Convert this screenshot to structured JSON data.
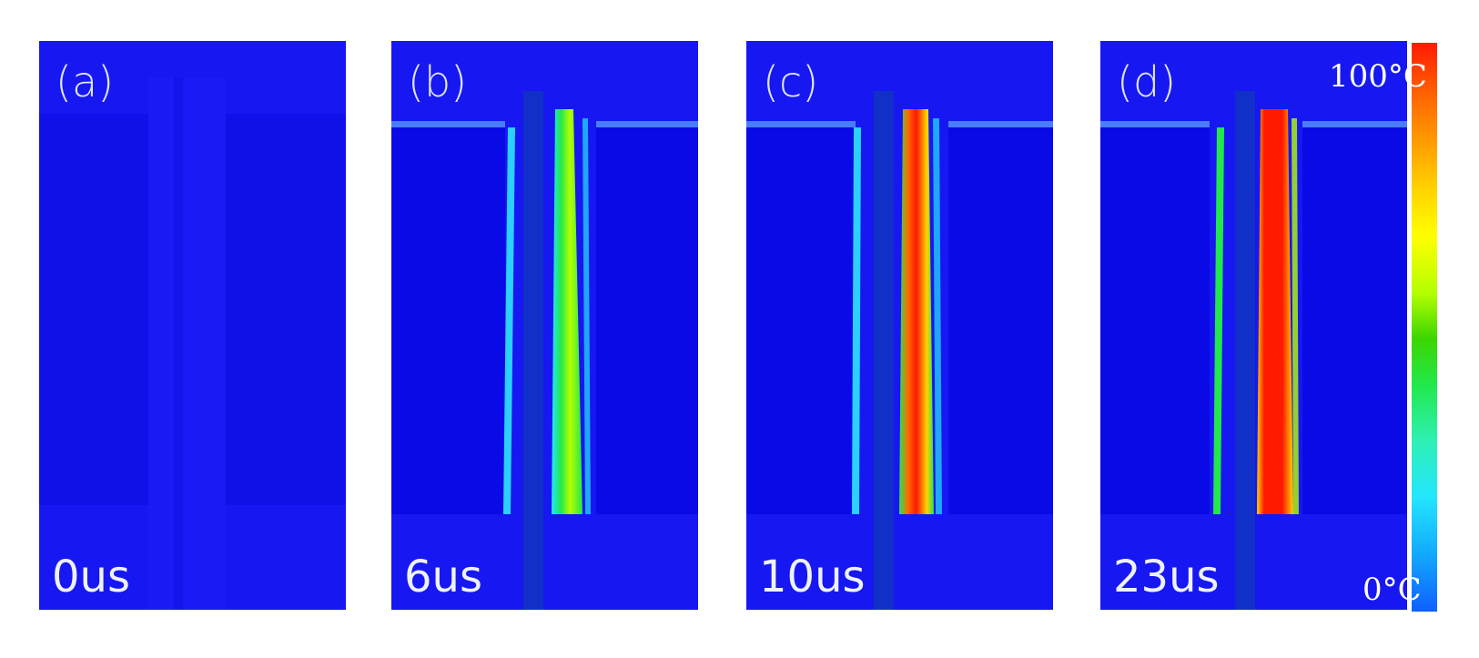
{
  "panels": [
    {
      "label": "(a)",
      "time": "0us",
      "heat": 0
    },
    {
      "label": "(b)",
      "time": "6us",
      "heat": 0.55
    },
    {
      "label": "(c)",
      "time": "10us",
      "heat": 0.85
    },
    {
      "label": "(d)",
      "time": "23us",
      "heat": 1.0
    }
  ],
  "colorbar": {
    "max_label": "100°C",
    "min_label": "0°C"
  },
  "colors": {
    "background_blue": "#1414f0",
    "region_blue": "#0a0ae6",
    "hot_red": "#ff1a00",
    "green": "#22e84a",
    "cyan": "#23e6ff"
  }
}
